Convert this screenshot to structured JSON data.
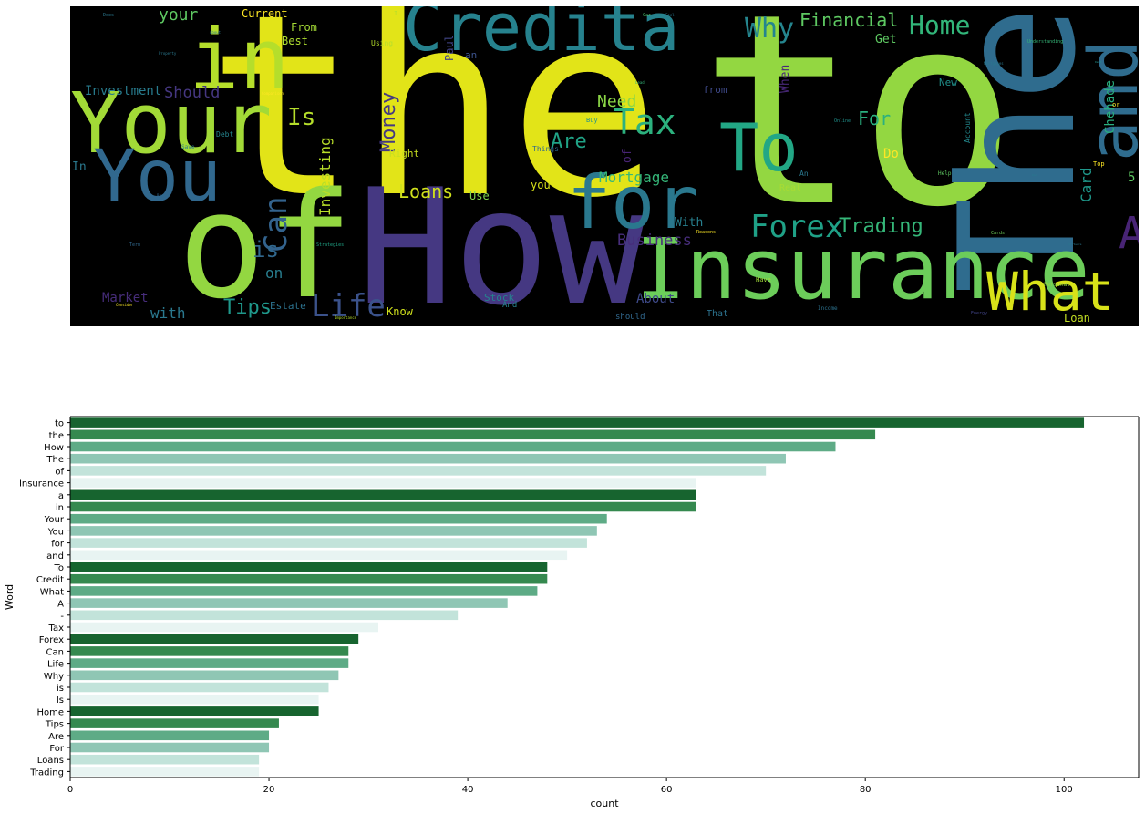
{
  "wordcloud": {
    "words": [
      {
        "text": "the",
        "color": "#e2e418"
      },
      {
        "text": "to",
        "color": "#93d741"
      },
      {
        "text": "How",
        "color": "#453882"
      },
      {
        "text": "The",
        "color": "#2f6c8e"
      },
      {
        "text": "of",
        "color": "#93d741"
      },
      {
        "text": "Insurance",
        "color": "#6ccd5a"
      },
      {
        "text": "in",
        "color": "#b5de2b"
      },
      {
        "text": "Your",
        "color": "#a2da37"
      },
      {
        "text": "You",
        "color": "#31688e"
      },
      {
        "text": "Credita",
        "color": "#26828e"
      },
      {
        "text": "for",
        "color": "#2a788e"
      },
      {
        "text": "and",
        "color": "#2f6c8e"
      },
      {
        "text": "To",
        "color": "#22a785"
      },
      {
        "text": "What",
        "color": "#d8e219"
      },
      {
        "text": "A",
        "color": "#482475"
      },
      {
        "text": "Tax",
        "color": "#2cb17e"
      },
      {
        "text": "Forex",
        "color": "#1fa187"
      },
      {
        "text": "Life",
        "color": "#3b528b"
      },
      {
        "text": "Can",
        "color": "#33638d"
      },
      {
        "text": "Why",
        "color": "#25858e"
      },
      {
        "text": "Home",
        "color": "#32b67a"
      },
      {
        "text": "Trading",
        "color": "#35b779"
      },
      {
        "text": "Is",
        "color": "#b5de2b"
      },
      {
        "text": "is",
        "color": "#31688e"
      },
      {
        "text": "Tips",
        "color": "#1f988b"
      },
      {
        "text": "Are",
        "color": "#20a386"
      },
      {
        "text": "For",
        "color": "#2ab07f"
      },
      {
        "text": "Loans",
        "color": "#d0e11c"
      },
      {
        "text": "Financial",
        "color": "#5ec962"
      },
      {
        "text": "Money",
        "color": "#443983"
      },
      {
        "text": "Mortgage",
        "color": "#35b779"
      },
      {
        "text": "Need",
        "color": "#8bd646"
      },
      {
        "text": "Investing",
        "color": "#b8de29"
      },
      {
        "text": "Business",
        "color": "#472d7b"
      },
      {
        "text": "Should",
        "color": "#453781"
      },
      {
        "text": "your",
        "color": "#5ec962"
      },
      {
        "text": "Investment",
        "color": "#287c8e"
      },
      {
        "text": "Get",
        "color": "#5ec962"
      },
      {
        "text": "Card",
        "color": "#1f988b"
      },
      {
        "text": "Chehade",
        "color": "#29af7f"
      },
      {
        "text": "Market",
        "color": "#472d7b"
      },
      {
        "text": "with",
        "color": "#2a788e"
      },
      {
        "text": "on",
        "color": "#287d8e"
      },
      {
        "text": "About",
        "color": "#3e4a89"
      },
      {
        "text": "Do",
        "color": "#fde725"
      },
      {
        "text": "With",
        "color": "#277f8e"
      },
      {
        "text": "Current",
        "color": "#fde725"
      },
      {
        "text": "Best",
        "color": "#addc30"
      },
      {
        "text": "From",
        "color": "#a5db36"
      },
      {
        "text": "Stock",
        "color": "#26828e"
      },
      {
        "text": "Know",
        "color": "#d0e11c"
      },
      {
        "text": "Estate",
        "color": "#2c728e"
      },
      {
        "text": "Loan",
        "color": "#c2df23"
      },
      {
        "text": "When",
        "color": "#482878"
      },
      {
        "text": "Paul",
        "color": "#414487"
      },
      {
        "text": "from",
        "color": "#3e4989"
      },
      {
        "text": "Use",
        "color": "#7fd34e"
      },
      {
        "text": "you",
        "color": "#d8e219"
      },
      {
        "text": "5",
        "color": "#5ec962"
      },
      {
        "text": "Right",
        "color": "#c8e020"
      },
      {
        "text": "In",
        "color": "#2a788e"
      },
      {
        "text": "Real",
        "color": "#a8db34"
      },
      {
        "text": "New",
        "color": "#21918c"
      },
      {
        "text": "of",
        "color": "#482475"
      },
      {
        "text": "an",
        "color": "#3b528b"
      },
      {
        "text": "Using",
        "color": "#b5de2b"
      },
      {
        "text": "should",
        "color": "#31688e"
      },
      {
        "text": "That",
        "color": "#2c728e"
      },
      {
        "text": "And",
        "color": "#26828e"
      },
      {
        "text": "Debt",
        "color": "#25848e"
      },
      {
        "text": "Things",
        "color": "#31688e"
      },
      {
        "text": "Buy",
        "color": "#21918c"
      },
      {
        "text": "An",
        "color": "#2a788e"
      },
      {
        "text": "Account",
        "color": "#23898e"
      },
      {
        "text": "Have",
        "color": "#a0da39"
      },
      {
        "text": "Save",
        "color": "#2a788e"
      },
      {
        "text": "Top",
        "color": "#fde725"
      },
      {
        "text": "Help",
        "color": "#5ec962"
      },
      {
        "text": "Income",
        "color": "#2c728e"
      },
      {
        "text": "Personal",
        "color": "#90d743"
      },
      {
        "text": "Energy",
        "color": "#414487"
      },
      {
        "text": "Cards",
        "color": "#6ece58"
      },
      {
        "text": "Reasons",
        "color": "#fde725"
      },
      {
        "text": "Strategies",
        "color": "#20a486"
      },
      {
        "text": "Term",
        "color": "#31688e"
      },
      {
        "text": "Consider",
        "color": "#fde725"
      },
      {
        "text": "Importance",
        "color": "#b5de2b"
      },
      {
        "text": "Property",
        "color": "#2a788e"
      },
      {
        "text": "Understanding",
        "color": "#35b779"
      },
      {
        "text": "Online",
        "color": "#21918c"
      },
      {
        "text": "Comparison",
        "color": "#fde725"
      },
      {
        "text": "Does",
        "color": "#2a788e"
      },
      {
        "text": "Car",
        "color": "#4ac16d"
      },
      {
        "text": "Feel",
        "color": "#2a788e"
      },
      {
        "text": "Lead",
        "color": "#35b779"
      },
      {
        "text": "or",
        "color": "#fde725"
      },
      {
        "text": "I",
        "color": "#b5de2b"
      },
      {
        "text": "Mortgages",
        "color": "#2a788e"
      },
      {
        "text": "Software",
        "color": "#2a788e"
      },
      {
        "text": "Broker",
        "color": "#31688e"
      },
      {
        "text": "Bad",
        "color": "#2a788e"
      },
      {
        "text": "Debt",
        "color": "#21918c"
      },
      {
        "text": "About",
        "color": "#2a788e"
      }
    ]
  },
  "chart_data": {
    "type": "bar",
    "orientation": "horizontal",
    "categories": [
      "to",
      "the",
      "How",
      "The",
      "of",
      "Insurance",
      "a",
      "in",
      "Your",
      "You",
      "for",
      "and",
      "To",
      "Credit",
      "What",
      "A",
      "-",
      "Tax",
      "Forex",
      "Can",
      "Life",
      "Why",
      "is",
      "Is",
      "Home",
      "Tips",
      "Are",
      "For",
      "Loans",
      "Trading"
    ],
    "values": [
      102,
      81,
      77,
      72,
      70,
      63,
      63,
      63,
      54,
      53,
      52,
      50,
      48,
      48,
      47,
      44,
      39,
      31,
      29,
      28,
      28,
      27,
      26,
      25,
      25,
      21,
      20,
      20,
      19,
      19
    ],
    "colors": [
      "#17642f",
      "#35894f",
      "#5eab86",
      "#8fc6b4",
      "#c2e3da",
      "#e8f4f2"
    ],
    "xlabel": "count",
    "ylabel": "Word",
    "xlim": [
      0,
      107.5
    ],
    "xticks": [
      0,
      20,
      40,
      60,
      80,
      100
    ],
    "grid": false
  }
}
